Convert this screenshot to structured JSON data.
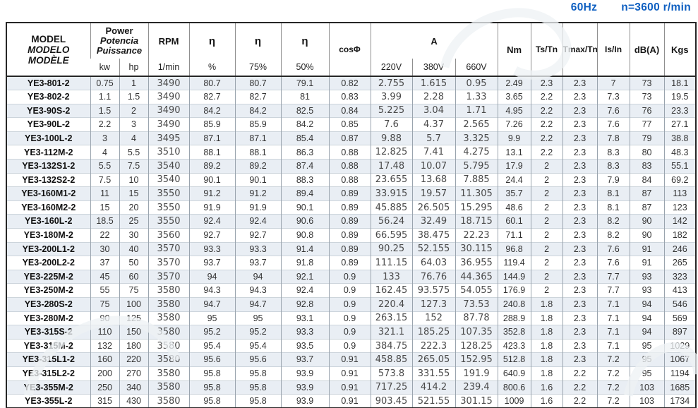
{
  "banner": {
    "freq": "60Hz",
    "speed": "n=3600 r/min",
    "color": "#0e5fc1"
  },
  "table": {
    "col_names": [
      "model",
      "kw",
      "hp",
      "rpm",
      "eta-full",
      "eta-75",
      "eta-50",
      "cos-phi",
      "current-220v",
      "current-380v",
      "current-660v",
      "nm",
      "ts-tn",
      "tmax-tn",
      "is-in",
      "db-a",
      "kgs"
    ],
    "alt_font_cols": [
      3,
      8,
      9,
      10
    ],
    "header": {
      "model_lines": [
        "MODEL",
        "MODELO",
        "MODÈLE"
      ],
      "power_lines": [
        "Power",
        "Potencia",
        "Puissance"
      ],
      "power_subs": [
        "kw",
        "hp"
      ],
      "rpm_title": "RPM",
      "rpm_sub": "1/min",
      "eta_title": "η",
      "eta_subs": [
        "%",
        "75%",
        "50%"
      ],
      "cos_title": "cosΦ",
      "current_title": "A",
      "current_subs": [
        "220V",
        "380V",
        "660V"
      ],
      "nm_title": "Nm",
      "ts_title": "Ts/Tn",
      "tmax_title": "Tmax/Tn",
      "is_title": "Is/In",
      "db_title": "dB(A)",
      "kgs_title": "Kgs"
    },
    "rows": [
      [
        "YE3-801-2",
        "0.75",
        "1",
        "3490",
        "80.7",
        "80.7",
        "79.1",
        "0.82",
        "2.755",
        "1.615",
        "0.95",
        "2.49",
        "2.3",
        "2.3",
        "7",
        "73",
        "18.1"
      ],
      [
        "YE3-802-2",
        "1.1",
        "1.5",
        "3490",
        "82.7",
        "82.7",
        "81",
        "0.83",
        "3.99",
        "2.28",
        "1.33",
        "3.65",
        "2.2",
        "2.3",
        "7.3",
        "73",
        "19.5"
      ],
      [
        "YE3-90S-2",
        "1.5",
        "2",
        "3490",
        "84.2",
        "84.2",
        "82.5",
        "0.84",
        "5.225",
        "3.04",
        "1.71",
        "4.95",
        "2.2",
        "2.3",
        "7.6",
        "76",
        "23.3"
      ],
      [
        "YE3-90L-2",
        "2.2",
        "3",
        "3490",
        "85.9",
        "85.9",
        "84.2",
        "0.85",
        "7.6",
        "4.37",
        "2.565",
        "7.26",
        "2.2",
        "2.3",
        "7.6",
        "77",
        "27.1"
      ],
      [
        "YE3-100L-2",
        "3",
        "4",
        "3495",
        "87.1",
        "87.1",
        "85.4",
        "0.87",
        "9.88",
        "5.7",
        "3.325",
        "9.9",
        "2.2",
        "2.3",
        "7.8",
        "79",
        "38.8"
      ],
      [
        "YE3-112M-2",
        "4",
        "5.5",
        "3510",
        "88.1",
        "88.1",
        "86.3",
        "0.88",
        "12.825",
        "7.41",
        "4.275",
        "13.1",
        "2.2",
        "2.3",
        "8.3",
        "80",
        "48.3"
      ],
      [
        "YE3-132S1-2",
        "5.5",
        "7.5",
        "3540",
        "89.2",
        "89.2",
        "87.4",
        "0.88",
        "17.48",
        "10.07",
        "5.795",
        "17.9",
        "2",
        "2.3",
        "8.3",
        "83",
        "55.1"
      ],
      [
        "YE3-132S2-2",
        "7.5",
        "10",
        "3540",
        "90.1",
        "90.1",
        "88.3",
        "0.88",
        "23.655",
        "13.68",
        "7.885",
        "24.4",
        "2",
        "2.3",
        "7.9",
        "84",
        "69.2"
      ],
      [
        "YE3-160M1-2",
        "11",
        "15",
        "3550",
        "91.2",
        "91.2",
        "89.4",
        "0.89",
        "33.915",
        "19.57",
        "11.305",
        "35.7",
        "2",
        "2.3",
        "8.1",
        "87",
        "113"
      ],
      [
        "YE3-160M2-2",
        "15",
        "20",
        "3550",
        "91.9",
        "91.9",
        "90.1",
        "0.89",
        "45.885",
        "26.505",
        "15.295",
        "48.6",
        "2",
        "2.3",
        "8.1",
        "87",
        "123"
      ],
      [
        "YE3-160L-2",
        "18.5",
        "25",
        "3550",
        "92.4",
        "92.4",
        "90.6",
        "0.89",
        "56.24",
        "32.49",
        "18.715",
        "60.1",
        "2",
        "2.3",
        "8.2",
        "90",
        "142"
      ],
      [
        "YE3-180M-2",
        "22",
        "30",
        "3560",
        "92.7",
        "92.7",
        "90.8",
        "0.89",
        "66.595",
        "38.475",
        "22.23",
        "71.1",
        "2",
        "2.3",
        "8.2",
        "90",
        "182"
      ],
      [
        "YE3-200L1-2",
        "30",
        "40",
        "3570",
        "93.3",
        "93.3",
        "91.4",
        "0.89",
        "90.25",
        "52.155",
        "30.115",
        "96.8",
        "2",
        "2.3",
        "7.6",
        "91",
        "246"
      ],
      [
        "YE3-200L2-2",
        "37",
        "50",
        "3570",
        "93.7",
        "93.7",
        "91.8",
        "0.89",
        "111.15",
        "64.03",
        "36.955",
        "119.4",
        "2",
        "2.3",
        "7.6",
        "91",
        "265"
      ],
      [
        "YE3-225M-2",
        "45",
        "60",
        "3570",
        "94",
        "94",
        "92.1",
        "0.9",
        "133",
        "76.76",
        "44.365",
        "144.9",
        "2",
        "2.3",
        "7.7",
        "93",
        "323"
      ],
      [
        "YE3-250M-2",
        "55",
        "75",
        "3580",
        "94.3",
        "94.3",
        "92.4",
        "0.9",
        "162.45",
        "93.575",
        "54.055",
        "176.9",
        "2",
        "2.3",
        "7.7",
        "93",
        "413"
      ],
      [
        "YE3-280S-2",
        "75",
        "100",
        "3580",
        "94.7",
        "94.7",
        "92.8",
        "0.9",
        "220.4",
        "127.3",
        "73.53",
        "240.8",
        "1.8",
        "2.3",
        "7.1",
        "94",
        "546"
      ],
      [
        "YE3-280M-2",
        "90",
        "125",
        "3580",
        "95",
        "95",
        "93.1",
        "0.9",
        "263.15",
        "152",
        "87.78",
        "288.9",
        "1.8",
        "2.3",
        "7.1",
        "94",
        "569"
      ],
      [
        "YE3-315S-2",
        "110",
        "150",
        "3580",
        "95.2",
        "95.2",
        "93.3",
        "0.9",
        "321.1",
        "185.25",
        "107.35",
        "352.8",
        "1.8",
        "2.3",
        "7.1",
        "94",
        "897"
      ],
      [
        "YE3-315M-2",
        "132",
        "180",
        "3580",
        "95.4",
        "95.4",
        "93.5",
        "0.9",
        "384.75",
        "222.3",
        "128.25",
        "423.3",
        "1.8",
        "2.3",
        "7.1",
        "95",
        "1029"
      ],
      [
        "YE3-315L1-2",
        "160",
        "220",
        "3580",
        "95.6",
        "95.6",
        "93.7",
        "0.91",
        "458.85",
        "265.05",
        "152.95",
        "512.8",
        "1.8",
        "2.3",
        "7.2",
        "95",
        "1067"
      ],
      [
        "YE3-315L2-2",
        "200",
        "270",
        "3580",
        "95.8",
        "95.8",
        "93.9",
        "0.91",
        "573.8",
        "331.55",
        "191.9",
        "640.9",
        "1.8",
        "2.2",
        "7.2",
        "95",
        "1194"
      ],
      [
        "YE3-355M-2",
        "250",
        "340",
        "3580",
        "95.8",
        "95.8",
        "93.9",
        "0.91",
        "717.25",
        "414.2",
        "239.4",
        "800.6",
        "1.6",
        "2.2",
        "7.2",
        "103",
        "1685"
      ],
      [
        "YE3-355L-2",
        "315",
        "430",
        "3580",
        "95.8",
        "95.8",
        "93.9",
        "0.91",
        "903.45",
        "521.55",
        "301.15",
        "1009",
        "1.6",
        "2.2",
        "7.2",
        "103",
        "1734"
      ]
    ]
  }
}
